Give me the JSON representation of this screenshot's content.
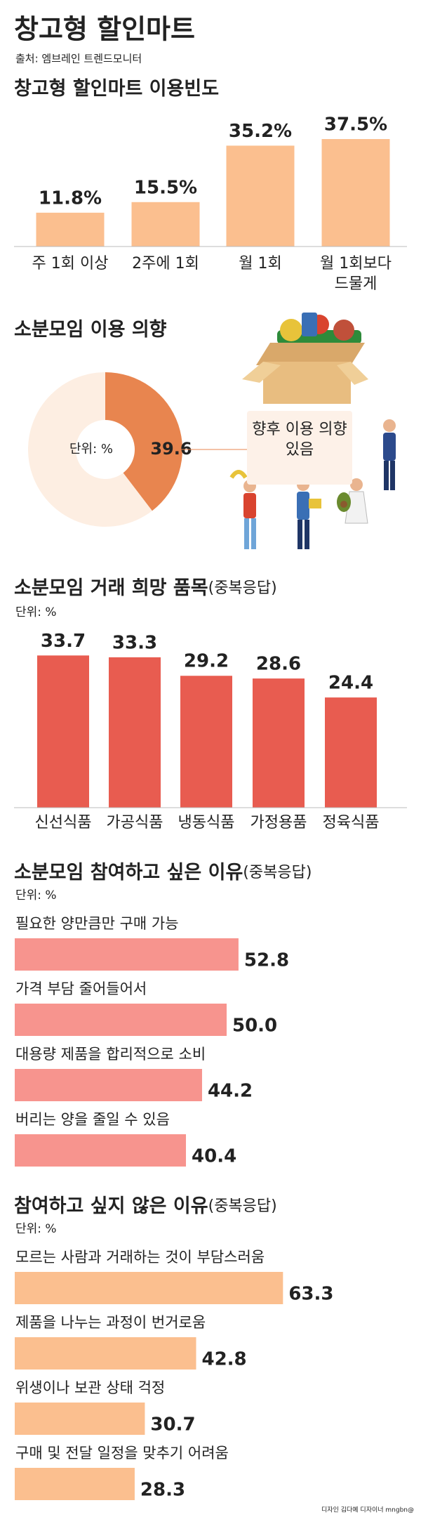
{
  "header": {
    "title": "창고형 할인마트",
    "source": "출처: 엠브레인 트렌드모니터"
  },
  "chart_data": [
    {
      "type": "bar",
      "title": "창고형 할인마트 이용빈도",
      "categories": [
        "주 1회 이상",
        "2주에 1회",
        "월 1회",
        "월 1회보다 드물게"
      ],
      "values": [
        11.8,
        15.5,
        35.2,
        37.5
      ],
      "value_labels": [
        "11.8%",
        "15.5%",
        "35.2%",
        "37.5%"
      ],
      "color": "#fbbf8f"
    },
    {
      "type": "pie",
      "title": "소분모임 이용 의향",
      "unit": "단위: %",
      "categories": [
        "향후 이용 의향 있음",
        null
      ],
      "values": [
        39.6,
        60.4
      ],
      "value_labels": [
        "39.6",
        null
      ],
      "colors": [
        "#e8854f",
        "#fdeee2"
      ]
    },
    {
      "type": "bar",
      "title": "소분모임 거래 희망 품목",
      "note": "(중복응답)",
      "unit": "단위: %",
      "categories": [
        "신선식품",
        "가공식품",
        "냉동식품",
        "가정용품",
        "정육식품"
      ],
      "values": [
        33.7,
        33.3,
        29.2,
        28.6,
        24.4
      ],
      "color": "#e85c50"
    },
    {
      "type": "hbar",
      "title": "소분모임 참여하고 싶은 이유",
      "note": "(중복응답)",
      "unit": "단위: %",
      "categories": [
        "필요한 양만큼만 구매 가능",
        "가격 부담 줄어들어서",
        "대용량 제품을 합리적으로 소비",
        "버리는 양을 줄일 수 있음"
      ],
      "values": [
        52.8,
        50.0,
        44.2,
        40.4
      ],
      "value_labels": [
        "52.8",
        "50.0",
        "44.2",
        "40.4"
      ],
      "color": "#f7948e"
    },
    {
      "type": "hbar",
      "title": "참여하고 싶지 않은 이유",
      "note": "(중복응답)",
      "unit": "단위: %",
      "categories": [
        "모르는 사람과 거래하는 것이 부담스러움",
        "제품을 나누는 과정이 번거로움",
        "위생이나 보관 상태 걱정",
        "구매 및 전달 일정을 맞추기 어려움"
      ],
      "values": [
        63.3,
        42.8,
        30.7,
        28.3
      ],
      "value_labels": [
        "63.3",
        "42.8",
        "30.7",
        "28.3"
      ],
      "color": "#fbbf8f"
    }
  ],
  "footer": {
    "credit": "디자인 김다예 디자이너 mngbn@"
  }
}
